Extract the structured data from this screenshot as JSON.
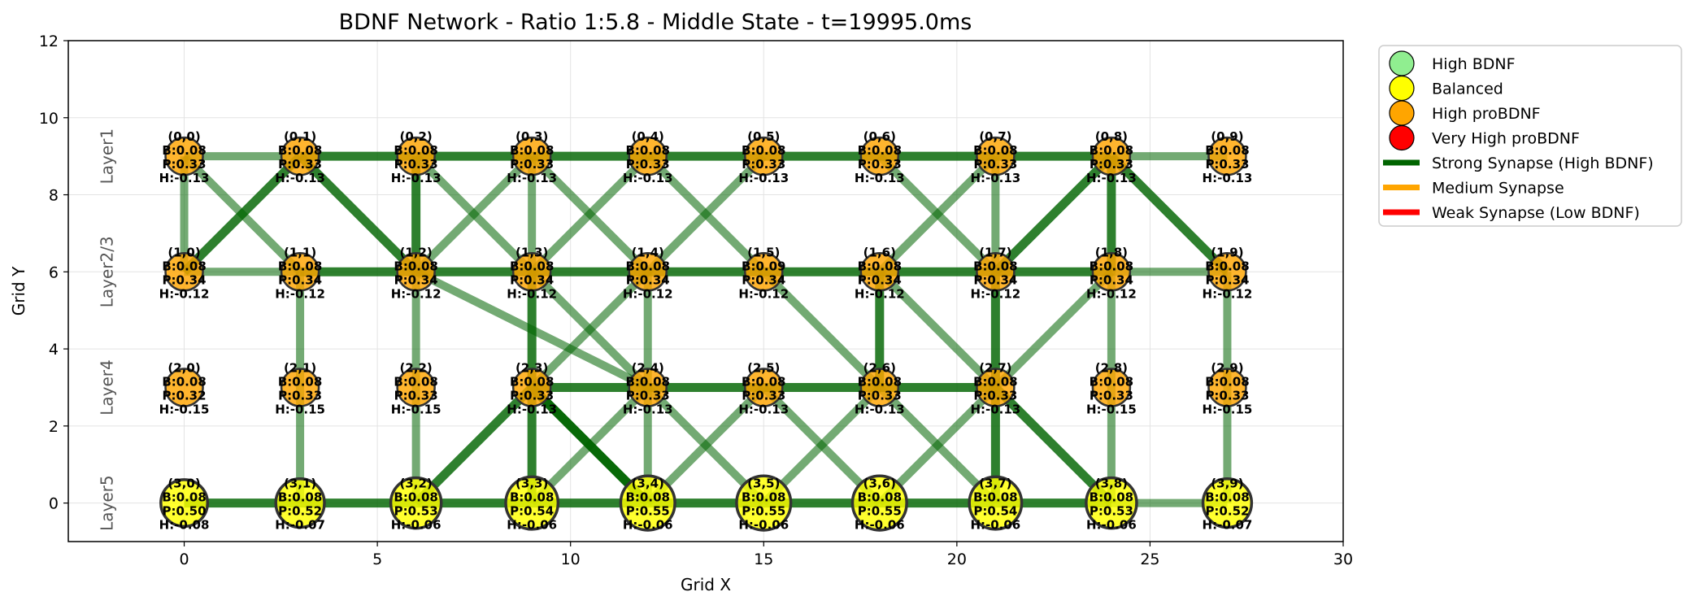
{
  "chart_data": {
    "type": "scatter",
    "title": "BDNF Network - Ratio 1:5.8 - Middle State - t=19995.0ms",
    "xlabel": "Grid X",
    "ylabel": "Grid Y",
    "xlim": [
      -3,
      30
    ],
    "ylim": [
      -1,
      12
    ],
    "xticks": [
      0,
      5,
      10,
      15,
      20,
      25,
      30
    ],
    "yticks": [
      0,
      2,
      4,
      6,
      8,
      10,
      12
    ],
    "grid": true,
    "legend_position": "outside upper right",
    "layer_labels": [
      {
        "text": "Layer1",
        "y": 9
      },
      {
        "text": "Layer2/3",
        "y": 6
      },
      {
        "text": "Layer4",
        "y": 3
      },
      {
        "text": "Layer5",
        "y": 0
      }
    ],
    "legend": [
      {
        "label": "High BDNF",
        "kind": "marker",
        "color": "#90ee90"
      },
      {
        "label": "Balanced",
        "kind": "marker",
        "color": "#ffff00"
      },
      {
        "label": "High proBDNF",
        "kind": "marker",
        "color": "#ffa500"
      },
      {
        "label": "Very High proBDNF",
        "kind": "marker",
        "color": "#ff0000"
      },
      {
        "label": "Strong Synapse (High BDNF)",
        "kind": "line",
        "color": "#006400"
      },
      {
        "label": "Medium Synapse",
        "kind": "line",
        "color": "#ffa500"
      },
      {
        "label": "Weak Synapse (Low BDNF)",
        "kind": "line",
        "color": "#ff0000"
      }
    ],
    "colors": {
      "balanced": "#ffff00",
      "high_probdnf": "#ffa500",
      "synapse": "#006400"
    },
    "layers": [
      {
        "y": 9,
        "B": [
          "0.08",
          "0.08",
          "0.08",
          "0.08",
          "0.08",
          "0.08",
          "0.08",
          "0.08",
          "0.08",
          "0.08"
        ],
        "P": [
          "0.33",
          "0.33",
          "0.33",
          "0.33",
          "0.33",
          "0.33",
          "0.33",
          "0.33",
          "0.33",
          "0.33"
        ],
        "H": [
          "-0.13",
          "-0.13",
          "-0.13",
          "-0.13",
          "-0.13",
          "-0.13",
          "-0.13",
          "-0.13",
          "-0.13",
          "-0.13"
        ],
        "state": "high_probdnf",
        "size": [
          1,
          1,
          1,
          1,
          1,
          1,
          1,
          1,
          1,
          1
        ]
      },
      {
        "y": 6,
        "B": [
          "0.08",
          "0.08",
          "0.08",
          "0.08",
          "0.08",
          "0.09",
          "0.08",
          "0.08",
          "0.08",
          "0.08"
        ],
        "P": [
          "0.34",
          "0.34",
          "0.34",
          "0.34",
          "0.34",
          "0.34",
          "0.34",
          "0.34",
          "0.34",
          "0.34"
        ],
        "H": [
          "-0.12",
          "-0.12",
          "-0.12",
          "-0.12",
          "-0.12",
          "-0.12",
          "-0.12",
          "-0.12",
          "-0.12",
          "-0.12"
        ],
        "state": "high_probdnf",
        "size": [
          1,
          1,
          1,
          1,
          1,
          1,
          1,
          1,
          1,
          1
        ]
      },
      {
        "y": 3,
        "B": [
          "0.08",
          "0.08",
          "0.08",
          "0.08",
          "0.08",
          "0.08",
          "0.08",
          "0.08",
          "0.08",
          "0.08"
        ],
        "P": [
          "0.32",
          "0.33",
          "0.33",
          "0.33",
          "0.33",
          "0.33",
          "0.33",
          "0.33",
          "0.33",
          "0.33"
        ],
        "H": [
          "-0.15",
          "-0.15",
          "-0.15",
          "-0.13",
          "-0.13",
          "-0.13",
          "-0.13",
          "-0.13",
          "-0.15",
          "-0.15"
        ],
        "state": "high_probdnf",
        "size": [
          1,
          1,
          1,
          1,
          1,
          1,
          1,
          1,
          1,
          1
        ]
      },
      {
        "y": 0,
        "B": [
          "0.08",
          "0.08",
          "0.08",
          "0.08",
          "0.08",
          "0.08",
          "0.08",
          "0.08",
          "0.08",
          "0.08"
        ],
        "P": [
          "0.50",
          "0.52",
          "0.53",
          "0.54",
          "0.55",
          "0.55",
          "0.55",
          "0.54",
          "0.53",
          "0.52"
        ],
        "H": [
          "-0.08",
          "-0.07",
          "-0.06",
          "-0.06",
          "-0.06",
          "-0.06",
          "-0.06",
          "-0.06",
          "-0.06",
          "-0.07"
        ],
        "state": "balanced",
        "size": [
          1.25,
          1.3,
          1.35,
          1.4,
          1.45,
          1.45,
          1.45,
          1.4,
          1.35,
          1.3
        ]
      }
    ],
    "node_x": [
      0,
      3,
      6,
      9,
      12,
      15,
      18,
      21,
      24,
      27
    ],
    "edges": [
      [
        [
          0,
          0
        ],
        [
          0,
          1
        ],
        "w"
      ],
      [
        [
          0,
          1
        ],
        [
          0,
          2
        ],
        "s"
      ],
      [
        [
          0,
          2
        ],
        [
          0,
          3
        ],
        "s"
      ],
      [
        [
          0,
          3
        ],
        [
          0,
          4
        ],
        "s"
      ],
      [
        [
          0,
          4
        ],
        [
          0,
          5
        ],
        "s"
      ],
      [
        [
          0,
          5
        ],
        [
          0,
          6
        ],
        "s"
      ],
      [
        [
          0,
          6
        ],
        [
          0,
          7
        ],
        "s"
      ],
      [
        [
          0,
          7
        ],
        [
          0,
          8
        ],
        "s"
      ],
      [
        [
          0,
          8
        ],
        [
          0,
          9
        ],
        "w"
      ],
      [
        [
          1,
          0
        ],
        [
          1,
          1
        ],
        "w"
      ],
      [
        [
          1,
          1
        ],
        [
          1,
          2
        ],
        "s"
      ],
      [
        [
          1,
          2
        ],
        [
          1,
          3
        ],
        "s"
      ],
      [
        [
          1,
          3
        ],
        [
          1,
          4
        ],
        "s"
      ],
      [
        [
          1,
          4
        ],
        [
          1,
          5
        ],
        "s"
      ],
      [
        [
          1,
          5
        ],
        [
          1,
          6
        ],
        "s"
      ],
      [
        [
          1,
          6
        ],
        [
          1,
          7
        ],
        "s"
      ],
      [
        [
          1,
          7
        ],
        [
          1,
          8
        ],
        "s"
      ],
      [
        [
          1,
          8
        ],
        [
          1,
          9
        ],
        "w"
      ],
      [
        [
          2,
          3
        ],
        [
          2,
          4
        ],
        "s"
      ],
      [
        [
          2,
          4
        ],
        [
          2,
          5
        ],
        "s"
      ],
      [
        [
          2,
          5
        ],
        [
          2,
          6
        ],
        "s"
      ],
      [
        [
          2,
          6
        ],
        [
          2,
          7
        ],
        "s"
      ],
      [
        [
          3,
          0
        ],
        [
          3,
          1
        ],
        "s"
      ],
      [
        [
          3,
          1
        ],
        [
          3,
          2
        ],
        "s"
      ],
      [
        [
          3,
          2
        ],
        [
          3,
          3
        ],
        "s"
      ],
      [
        [
          3,
          3
        ],
        [
          3,
          4
        ],
        "s"
      ],
      [
        [
          3,
          4
        ],
        [
          3,
          5
        ],
        "s"
      ],
      [
        [
          3,
          5
        ],
        [
          3,
          6
        ],
        "s"
      ],
      [
        [
          3,
          6
        ],
        [
          3,
          7
        ],
        "s"
      ],
      [
        [
          3,
          7
        ],
        [
          3,
          8
        ],
        "s"
      ],
      [
        [
          3,
          8
        ],
        [
          3,
          9
        ],
        "w"
      ],
      [
        [
          0,
          0
        ],
        [
          1,
          0
        ],
        "w"
      ],
      [
        [
          0,
          2
        ],
        [
          1,
          2
        ],
        "s"
      ],
      [
        [
          0,
          3
        ],
        [
          1,
          3
        ],
        "w"
      ],
      [
        [
          0,
          7
        ],
        [
          1,
          7
        ],
        "w"
      ],
      [
        [
          0,
          8
        ],
        [
          1,
          8
        ],
        "s"
      ],
      [
        [
          0,
          1
        ],
        [
          1,
          0
        ],
        "s"
      ],
      [
        [
          0,
          0
        ],
        [
          1,
          1
        ],
        "w"
      ],
      [
        [
          0,
          1
        ],
        [
          1,
          2
        ],
        "s"
      ],
      [
        [
          0,
          2
        ],
        [
          1,
          3
        ],
        "w"
      ],
      [
        [
          0,
          3
        ],
        [
          1,
          2
        ],
        "w"
      ],
      [
        [
          0,
          3
        ],
        [
          1,
          4
        ],
        "w"
      ],
      [
        [
          0,
          4
        ],
        [
          1,
          3
        ],
        "w"
      ],
      [
        [
          0,
          4
        ],
        [
          1,
          5
        ],
        "w"
      ],
      [
        [
          0,
          5
        ],
        [
          1,
          4
        ],
        "w"
      ],
      [
        [
          0,
          6
        ],
        [
          1,
          7
        ],
        "w"
      ],
      [
        [
          0,
          7
        ],
        [
          1,
          6
        ],
        "w"
      ],
      [
        [
          0,
          8
        ],
        [
          1,
          7
        ],
        "s"
      ],
      [
        [
          0,
          8
        ],
        [
          1,
          9
        ],
        "s"
      ],
      [
        [
          1,
          1
        ],
        [
          3,
          1
        ],
        "w"
      ],
      [
        [
          1,
          2
        ],
        [
          3,
          2
        ],
        "w"
      ],
      [
        [
          1,
          3
        ],
        [
          2,
          3
        ],
        "s"
      ],
      [
        [
          2,
          3
        ],
        [
          3,
          3
        ],
        "s"
      ],
      [
        [
          1,
          4
        ],
        [
          3,
          4
        ],
        "w"
      ],
      [
        [
          1,
          6
        ],
        [
          2,
          6
        ],
        "s"
      ],
      [
        [
          1,
          7
        ],
        [
          2,
          7
        ],
        "s"
      ],
      [
        [
          2,
          7
        ],
        [
          3,
          7
        ],
        "s"
      ],
      [
        [
          1,
          8
        ],
        [
          3,
          8
        ],
        "w"
      ],
      [
        [
          1,
          9
        ],
        [
          3,
          9
        ],
        "w"
      ],
      [
        [
          1,
          2
        ],
        [
          2,
          4
        ],
        "w"
      ],
      [
        [
          1,
          3
        ],
        [
          2,
          4
        ],
        "w"
      ],
      [
        [
          1,
          4
        ],
        [
          2,
          3
        ],
        "w"
      ],
      [
        [
          1,
          5
        ],
        [
          2,
          6
        ],
        "w"
      ],
      [
        [
          1,
          6
        ],
        [
          2,
          7
        ],
        "w"
      ],
      [
        [
          1,
          8
        ],
        [
          2,
          7
        ],
        "w"
      ],
      [
        [
          2,
          3
        ],
        [
          3,
          2
        ],
        "s"
      ],
      [
        [
          2,
          3
        ],
        [
          3,
          4
        ],
        "s"
      ],
      [
        [
          2,
          3
        ],
        [
          3,
          4
        ],
        "s"
      ],
      [
        [
          2,
          4
        ],
        [
          3,
          3
        ],
        "w"
      ],
      [
        [
          2,
          5
        ],
        [
          3,
          4
        ],
        "w"
      ],
      [
        [
          2,
          4
        ],
        [
          3,
          5
        ],
        "w"
      ],
      [
        [
          2,
          5
        ],
        [
          3,
          6
        ],
        "w"
      ],
      [
        [
          2,
          6
        ],
        [
          3,
          5
        ],
        "w"
      ],
      [
        [
          2,
          7
        ],
        [
          3,
          6
        ],
        "w"
      ],
      [
        [
          2,
          6
        ],
        [
          3,
          7
        ],
        "w"
      ],
      [
        [
          2,
          7
        ],
        [
          3,
          8
        ],
        "s"
      ]
    ]
  }
}
